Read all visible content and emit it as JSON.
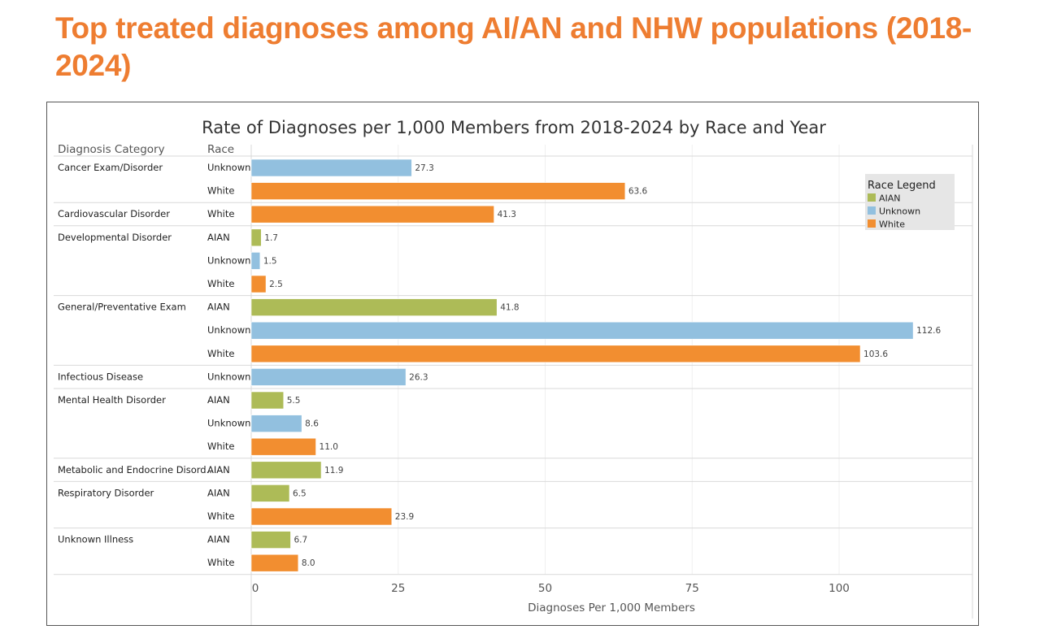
{
  "page": {
    "title": "Top treated diagnoses among AI/AN and NHW populations (2018-2024)"
  },
  "colors": {
    "title": "#ee7d31",
    "AIAN": "#adbb57",
    "Unknown": "#92c0df",
    "White": "#f28e30"
  },
  "chart_data": {
    "type": "bar",
    "orientation": "horizontal",
    "title": "Rate of Diagnoses per 1,000 Members from 2018-2024 by Race and Year",
    "row_headers": [
      "Diagnosis Category",
      "Race"
    ],
    "xlabel": "Diagnoses Per 1,000 Members",
    "xlim": [
      0,
      120
    ],
    "xticks": [
      0,
      25,
      50,
      75,
      100
    ],
    "grid": true,
    "legend": {
      "title": "Race Legend",
      "entries": [
        "AIAN",
        "Unknown",
        "White"
      ],
      "placement": "top-right"
    },
    "groups": [
      {
        "category": "Cancer Exam/Disorder",
        "bars": [
          {
            "race": "Unknown",
            "value": 27.3,
            "label": "27.3"
          },
          {
            "race": "White",
            "value": 63.6,
            "label": "63.6"
          }
        ]
      },
      {
        "category": "Cardiovascular Disorder",
        "bars": [
          {
            "race": "White",
            "value": 41.3,
            "label": "41.3"
          }
        ]
      },
      {
        "category": "Developmental Disorder",
        "bars": [
          {
            "race": "AIAN",
            "value": 1.7,
            "label": "1.7"
          },
          {
            "race": "Unknown",
            "value": 1.5,
            "label": "1.5"
          },
          {
            "race": "White",
            "value": 2.5,
            "label": "2.5"
          }
        ]
      },
      {
        "category": "General/Preventative Exam",
        "bars": [
          {
            "race": "AIAN",
            "value": 41.8,
            "label": "41.8"
          },
          {
            "race": "Unknown",
            "value": 112.6,
            "label": "112.6"
          },
          {
            "race": "White",
            "value": 103.6,
            "label": "103.6"
          }
        ]
      },
      {
        "category": "Infectious Disease",
        "bars": [
          {
            "race": "Unknown",
            "value": 26.3,
            "label": "26.3"
          }
        ]
      },
      {
        "category": "Mental Health Disorder",
        "bars": [
          {
            "race": "AIAN",
            "value": 5.5,
            "label": "5.5"
          },
          {
            "race": "Unknown",
            "value": 8.6,
            "label": "8.6"
          },
          {
            "race": "White",
            "value": 11.0,
            "label": "11.0"
          }
        ]
      },
      {
        "category": "Metabolic and Endocrine Disord..",
        "bars": [
          {
            "race": "AIAN",
            "value": 11.9,
            "label": "11.9"
          }
        ]
      },
      {
        "category": "Respiratory Disorder",
        "bars": [
          {
            "race": "AIAN",
            "value": 6.5,
            "label": "6.5"
          },
          {
            "race": "White",
            "value": 23.9,
            "label": "23.9"
          }
        ]
      },
      {
        "category": "Unknown Illness",
        "bars": [
          {
            "race": "AIAN",
            "value": 6.7,
            "label": "6.7"
          },
          {
            "race": "White",
            "value": 8.0,
            "label": "8.0"
          }
        ]
      }
    ]
  }
}
